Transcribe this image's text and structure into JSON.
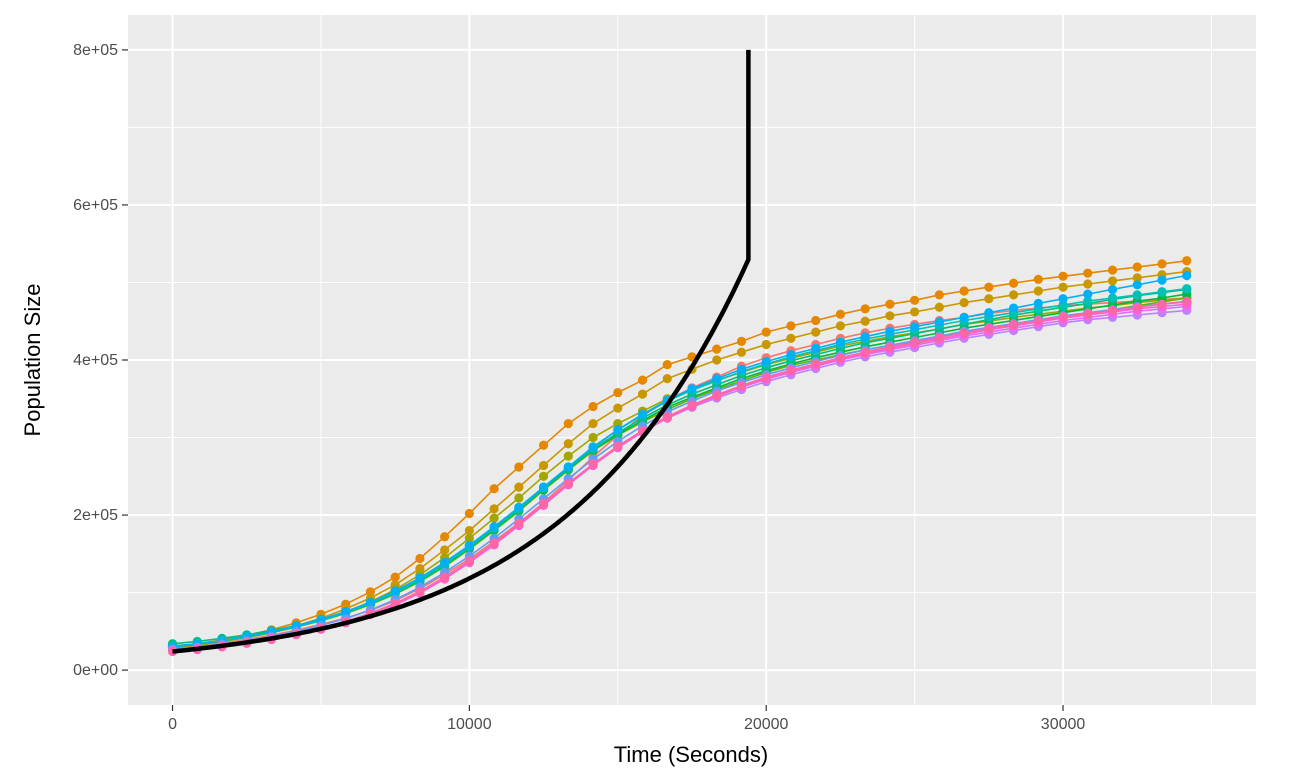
{
  "chart_data": {
    "type": "line",
    "title": "",
    "xlabel": "Time (Seconds)",
    "ylabel": "Population Size",
    "xlim": [
      -1500,
      36500
    ],
    "ylim": [
      -45000,
      845000
    ],
    "x_ticks": [
      0,
      10000,
      20000,
      30000
    ],
    "x_tick_labels": [
      "0",
      "10000",
      "20000",
      "30000"
    ],
    "y_ticks": [
      0,
      200000,
      400000,
      600000,
      800000
    ],
    "y_tick_labels": [
      "0e+00",
      "2e+05",
      "4e+05",
      "6e+05",
      "8e+05"
    ],
    "grid": true,
    "legend": "none",
    "colors": {
      "panel_background": "#ebebeb",
      "grid": "#ffffff",
      "model_curve": "#000000"
    },
    "x": [
      0,
      833,
      1667,
      2500,
      3333,
      4167,
      5000,
      5833,
      6667,
      7500,
      8333,
      9167,
      10000,
      10833,
      11667,
      12500,
      13333,
      14167,
      15000,
      15833,
      16667,
      17500,
      18333,
      19167,
      20000,
      20833,
      21667,
      22500,
      23333,
      24167,
      25000,
      25833,
      26667,
      27500,
      28333,
      29167,
      30000,
      30833,
      31667,
      32500,
      33333,
      34167
    ],
    "series": [
      {
        "color": "#F8766D",
        "values": [
          28000,
          30500,
          34500,
          39500,
          45000,
          51500,
          59000,
          67000,
          77000,
          89500,
          105000,
          123500,
          143500,
          166000,
          190000,
          216000,
          245000,
          275000,
          303000,
          328000,
          348000,
          364000,
          378000,
          392000,
          403000,
          412000,
          420000,
          428000,
          435000,
          441000,
          446000,
          451000,
          455000,
          460000,
          464000,
          467000,
          470000,
          472000,
          474000,
          476000,
          478000,
          480000
        ]
      },
      {
        "color": "#E58700",
        "values": [
          30000,
          34000,
          39000,
          45000,
          52000,
          61000,
          72000,
          85000,
          101000,
          120000,
          144000,
          172000,
          202000,
          234000,
          262000,
          290000,
          318000,
          340000,
          358000,
          374000,
          394000,
          404000,
          414000,
          424000,
          436000,
          444000,
          451000,
          459000,
          466000,
          472000,
          477000,
          484000,
          489000,
          494000,
          499000,
          504000,
          508000,
          512000,
          516000,
          520000,
          524000,
          528000
        ]
      },
      {
        "color": "#C99800",
        "values": [
          29000,
          32500,
          37500,
          43000,
          49500,
          57000,
          67000,
          79000,
          93000,
          110000,
          131000,
          155000,
          180000,
          208000,
          236000,
          264000,
          292000,
          318000,
          338000,
          356000,
          376000,
          388000,
          400000,
          410000,
          420000,
          428000,
          436000,
          444000,
          450000,
          457000,
          462000,
          468000,
          474000,
          479000,
          484000,
          489000,
          494000,
          498000,
          502000,
          506000,
          510000,
          514000
        ]
      },
      {
        "color": "#A3A500",
        "values": [
          29000,
          32000,
          36500,
          42000,
          48000,
          55500,
          64500,
          75000,
          88000,
          104000,
          123000,
          145000,
          170000,
          196000,
          222000,
          250000,
          276000,
          300000,
          318000,
          334000,
          350000,
          362000,
          374000,
          384000,
          394000,
          402000,
          410000,
          418000,
          424000,
          430000,
          435000,
          440000,
          446000,
          450000,
          455000,
          459000,
          463000,
          467000,
          470000,
          474000,
          477000,
          480000
        ]
      },
      {
        "color": "#6BB100",
        "values": [
          30000,
          33000,
          37500,
          42500,
          48500,
          55500,
          63500,
          73000,
          84500,
          98000,
          114000,
          133500,
          156000,
          180000,
          205000,
          232000,
          258000,
          283000,
          303000,
          320000,
          336000,
          350000,
          362000,
          373000,
          384000,
          393000,
          400000,
          407000,
          413000,
          419000,
          424000,
          430000,
          436000,
          441000,
          446000,
          451000,
          456000,
          460000,
          465000,
          470000,
          475000,
          480000
        ]
      },
      {
        "color": "#00BA38",
        "values": [
          31000,
          34000,
          38000,
          43000,
          49000,
          56000,
          64500,
          74000,
          85500,
          99000,
          115000,
          134500,
          157000,
          181000,
          206000,
          233000,
          259000,
          284000,
          304000,
          322000,
          339000,
          352000,
          364000,
          376000,
          386000,
          395000,
          403000,
          410000,
          417000,
          423000,
          429000,
          435000,
          441000,
          446000,
          451000,
          456000,
          461000,
          466000,
          471000,
          476000,
          480000,
          485000
        ]
      },
      {
        "color": "#00BF7D",
        "values": [
          34000,
          37000,
          41000,
          45500,
          51000,
          57500,
          65500,
          75000,
          86000,
          99500,
          115500,
          135000,
          157500,
          182000,
          207000,
          234000,
          260000,
          285000,
          306000,
          325000,
          342000,
          356000,
          368000,
          380000,
          390000,
          399000,
          407000,
          415000,
          422000,
          428000,
          434000,
          440000,
          446000,
          452000,
          458000,
          463000,
          468000,
          473000,
          478000,
          483000,
          487000,
          491000
        ]
      },
      {
        "color": "#00C0B8",
        "values": [
          31000,
          34000,
          38000,
          43000,
          49000,
          56000,
          64000,
          74000,
          86000,
          100000,
          117000,
          137000,
          160000,
          184000,
          209000,
          236000,
          262000,
          288000,
          310000,
          329000,
          347000,
          361000,
          373000,
          385000,
          395000,
          404000,
          412000,
          420000,
          427000,
          433000,
          439000,
          445000,
          451000,
          456000,
          461000,
          466000,
          471000,
          476000,
          480000,
          484000,
          488000,
          492000
        ]
      },
      {
        "color": "#00B0F6",
        "values": [
          30000,
          33500,
          38000,
          43500,
          49500,
          57000,
          65500,
          75500,
          87500,
          102000,
          119000,
          139000,
          161000,
          185000,
          210000,
          236000,
          262000,
          287000,
          310000,
          330000,
          348000,
          363000,
          376000,
          388000,
          398000,
          407000,
          415000,
          423000,
          430000,
          437000,
          443000,
          449000,
          455000,
          461000,
          467000,
          473000,
          479000,
          485000,
          491000,
          497000,
          503000,
          509000
        ]
      },
      {
        "color": "#619CFF",
        "values": [
          27000,
          29500,
          33500,
          38000,
          43500,
          50000,
          57500,
          66500,
          77500,
          91000,
          107000,
          126000,
          147000,
          170000,
          195000,
          221000,
          247000,
          272000,
          295000,
          315000,
          333000,
          347000,
          360000,
          371000,
          381000,
          390000,
          398000,
          406000,
          413000,
          419000,
          425000,
          431000,
          437000,
          442000,
          447000,
          452000,
          457000,
          461000,
          465000,
          469000,
          472000,
          475000
        ]
      },
      {
        "color": "#B983FF",
        "values": [
          26000,
          28500,
          32000,
          36500,
          41500,
          47500,
          54500,
          63000,
          73500,
          86000,
          101000,
          119000,
          140000,
          163000,
          188000,
          214000,
          240000,
          265000,
          287000,
          307000,
          325000,
          339000,
          351000,
          362000,
          372000,
          381000,
          389000,
          397000,
          404000,
          410000,
          416000,
          422000,
          428000,
          433000,
          438000,
          443000,
          448000,
          452000,
          455000,
          458000,
          461000,
          464000
        ]
      },
      {
        "color": "#E76BF3",
        "values": [
          25000,
          27500,
          31000,
          35500,
          40500,
          46500,
          53500,
          62000,
          72500,
          85000,
          100500,
          118500,
          139500,
          162500,
          187500,
          213500,
          240000,
          265000,
          288000,
          308000,
          326000,
          340000,
          353000,
          365000,
          375000,
          384000,
          392000,
          400000,
          407000,
          413000,
          419000,
          425000,
          431000,
          436000,
          441000,
          446000,
          451000,
          455000,
          459000,
          463000,
          466000,
          469000
        ]
      },
      {
        "color": "#FD61D1",
        "values": [
          24000,
          26500,
          30000,
          34500,
          39500,
          45500,
          52500,
          61000,
          71500,
          84000,
          99500,
          117500,
          138500,
          161500,
          186500,
          212500,
          239000,
          264000,
          287000,
          307000,
          325000,
          340000,
          353000,
          365000,
          376000,
          385000,
          393000,
          401000,
          408000,
          415000,
          421000,
          427000,
          433000,
          439000,
          444000,
          449000,
          454000,
          458000,
          462000,
          466000,
          469000,
          472000
        ]
      },
      {
        "color": "#FF67A4",
        "values": [
          25000,
          27500,
          31000,
          35500,
          40500,
          46500,
          54000,
          62500,
          73000,
          86000,
          101500,
          120000,
          141000,
          164000,
          189000,
          215000,
          241000,
          266000,
          289000,
          309000,
          327000,
          342000,
          355000,
          367000,
          378000,
          387000,
          395000,
          403000,
          410000,
          417000,
          423000,
          429000,
          435000,
          441000,
          446000,
          451000,
          456000,
          460000,
          464000,
          468000,
          472000,
          476000
        ]
      }
    ],
    "model_curve": {
      "type": "exponential",
      "x": [
        0,
        1000,
        2000,
        3000,
        4000,
        5000,
        6000,
        7000,
        8000,
        9000,
        10000,
        11000,
        12000,
        13000,
        14000,
        15000,
        16000,
        17000,
        18000,
        19000,
        19400
      ],
      "values": [
        24000,
        28150,
        33020,
        38720,
        45420,
        53270,
        62480,
        73290,
        85960,
        100830,
        118270,
        138720,
        162710,
        190850,
        223850,
        262560,
        307970,
        361230,
        423700,
        496980,
        800000
      ]
    }
  }
}
